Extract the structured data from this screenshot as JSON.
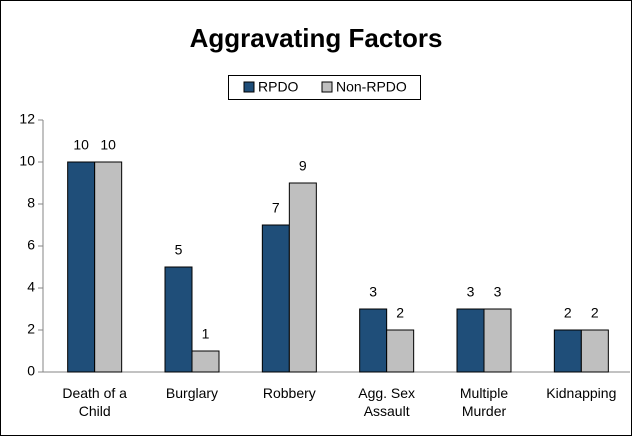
{
  "chart_data": {
    "type": "bar",
    "title": "Aggravating Factors",
    "categories": [
      "Death of a Child",
      "Burglary",
      "Robbery",
      "Agg. Sex Assault",
      "Multiple Murder",
      "Kidnapping"
    ],
    "series": [
      {
        "name": "RPDO",
        "color": "#1f4e79",
        "values": [
          10,
          5,
          7,
          3,
          3,
          2
        ]
      },
      {
        "name": "Non-RPDO",
        "color": "#bfbfbf",
        "values": [
          10,
          1,
          9,
          2,
          3,
          2
        ]
      }
    ],
    "ylim": [
      0,
      12
    ],
    "yticks": [
      0,
      2,
      4,
      6,
      8,
      10,
      12
    ],
    "grid": false,
    "legend": "top"
  }
}
